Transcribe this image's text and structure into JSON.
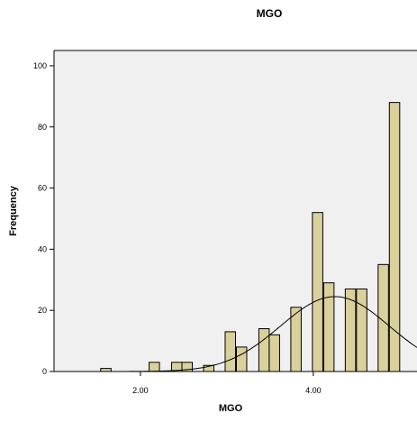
{
  "chart_data": {
    "type": "bar",
    "title": "MGO",
    "xlabel": "MGO",
    "ylabel": "Frequency",
    "xlim": [
      1.0,
      5.2
    ],
    "ylim": [
      0,
      105
    ],
    "x_ticks": [
      {
        "value": 2.0,
        "label": "2.00"
      },
      {
        "value": 4.0,
        "label": "4.00"
      }
    ],
    "y_ticks": [
      {
        "value": 0,
        "label": "0"
      },
      {
        "value": 20,
        "label": "20"
      },
      {
        "value": 40,
        "label": "40"
      },
      {
        "value": 60,
        "label": "60"
      },
      {
        "value": 80,
        "label": "80"
      },
      {
        "value": 100,
        "label": "100"
      }
    ],
    "bin_width": 0.12,
    "bins": [
      {
        "x": 1.6,
        "count": 1
      },
      {
        "x": 2.16,
        "count": 3
      },
      {
        "x": 2.42,
        "count": 3
      },
      {
        "x": 2.54,
        "count": 3
      },
      {
        "x": 2.79,
        "count": 2
      },
      {
        "x": 3.04,
        "count": 13
      },
      {
        "x": 3.17,
        "count": 8
      },
      {
        "x": 3.43,
        "count": 14
      },
      {
        "x": 3.55,
        "count": 12
      },
      {
        "x": 3.8,
        "count": 21
      },
      {
        "x": 4.05,
        "count": 52
      },
      {
        "x": 4.18,
        "count": 29
      },
      {
        "x": 4.43,
        "count": 27
      },
      {
        "x": 4.56,
        "count": 27
      },
      {
        "x": 4.81,
        "count": 35
      },
      {
        "x": 4.94,
        "count": 88
      }
    ],
    "normal_curve": {
      "mean": 4.25,
      "sd": 0.63,
      "peak": 24.5
    },
    "colors": {
      "bar_fill": "#d9d09c",
      "bar_stroke": "#000000",
      "plot_background": "#f0f0f0",
      "curve": "#000000"
    },
    "grid": false
  }
}
